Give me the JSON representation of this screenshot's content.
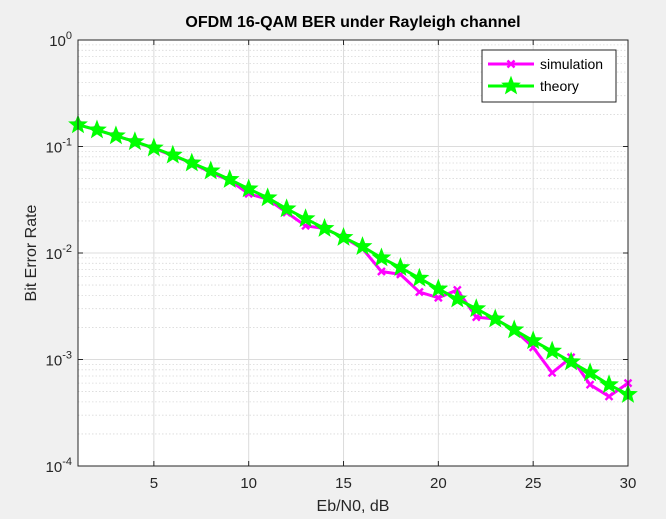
{
  "chart_data": {
    "type": "line",
    "title": "OFDM 16-QAM BER under Rayleigh channel",
    "xlabel": "Eb/N0, dB",
    "ylabel": "Bit Error Rate",
    "xlim": [
      1,
      30
    ],
    "ylim": [
      0.0001,
      1
    ],
    "yscale": "log",
    "grid": true,
    "x_ticks": [
      5,
      10,
      15,
      20,
      25,
      30
    ],
    "x_tick_labels": [
      "5",
      "10",
      "15",
      "20",
      "25",
      "30"
    ],
    "y_ticks": [
      {
        "value": 1,
        "base": "10",
        "exp": "0"
      },
      {
        "value": 0.1,
        "base": "10",
        "exp": "-1"
      },
      {
        "value": 0.01,
        "base": "10",
        "exp": "-2"
      },
      {
        "value": 0.001,
        "base": "10",
        "exp": "-3"
      },
      {
        "value": 0.0001,
        "base": "10",
        "exp": "-4"
      }
    ],
    "legend_position": "top-right",
    "x": [
      1,
      2,
      3,
      4,
      5,
      6,
      7,
      8,
      9,
      10,
      11,
      12,
      13,
      14,
      15,
      16,
      17,
      18,
      19,
      20,
      21,
      22,
      23,
      24,
      25,
      26,
      27,
      28,
      29,
      30
    ],
    "series": [
      {
        "name": "simulation",
        "color": "#ff00ff",
        "marker": "x",
        "values": [
          0.16,
          0.143,
          0.126,
          0.111,
          0.096,
          0.082,
          0.07,
          0.057,
          0.048,
          0.036,
          0.032,
          0.024,
          0.018,
          0.017,
          0.014,
          0.011,
          0.0067,
          0.0063,
          0.0043,
          0.0038,
          0.0045,
          0.0025,
          0.0024,
          0.0019,
          0.0013,
          0.00075,
          0.00105,
          0.00058,
          0.00045,
          0.0006
        ]
      },
      {
        "name": "theory",
        "color": "#00ff00",
        "marker": "star",
        "values": [
          0.16,
          0.143,
          0.126,
          0.111,
          0.097,
          0.083,
          0.07,
          0.059,
          0.049,
          0.04,
          0.033,
          0.026,
          0.021,
          0.017,
          0.014,
          0.0115,
          0.009,
          0.0073,
          0.0058,
          0.0046,
          0.0037,
          0.003,
          0.0024,
          0.0019,
          0.0015,
          0.0012,
          0.00095,
          0.00075,
          0.00058,
          0.00047
        ]
      }
    ]
  }
}
